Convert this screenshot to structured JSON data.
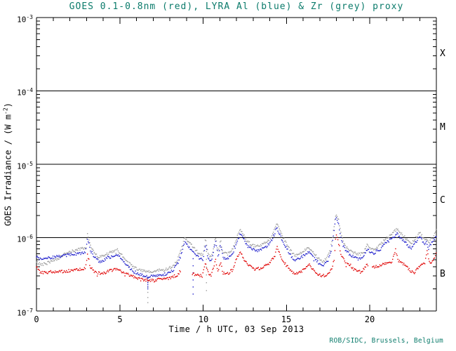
{
  "figure": {
    "title": "GOES 0.1-0.8nm (red), LYRA Al (blue) & Zr (grey) proxy",
    "title_color": "#0b7b6b",
    "credit": "ROB/SIDC, Brussels, Belgium",
    "background": "#ffffff",
    "axis_color": "#000000"
  },
  "axes": {
    "xlabel": "Time / h UTC, 03 Sep 2013",
    "ylabel_pre": "GOES Irradiance / (W m",
    "ylabel_exp": "-2",
    "ylabel_post": ")",
    "x_ticks": [
      "0",
      "5",
      "10",
      "15",
      "20"
    ],
    "y_ticks": [
      {
        "base": "10",
        "exp": "-3"
      },
      {
        "base": "10",
        "exp": "-4"
      },
      {
        "base": "10",
        "exp": "-5"
      },
      {
        "base": "10",
        "exp": "-6"
      },
      {
        "base": "10",
        "exp": "-7"
      }
    ]
  },
  "right_labels": [
    "X",
    "M",
    "C",
    "B"
  ],
  "chart_data": {
    "type": "scatter",
    "title": "GOES 0.1-0.8nm (red), LYRA Al (blue) & Zr (grey) proxy",
    "xlabel": "Time / h UTC, 03 Sep 2013",
    "ylabel": "GOES Irradiance / (W m^-2)",
    "xlim": [
      0,
      24
    ],
    "ylim": [
      1e-07,
      0.001
    ],
    "yscale": "log",
    "x_tick_values": [
      0,
      5,
      10,
      15,
      20
    ],
    "x_minor_step_hours": 1,
    "class_lines": [
      0.0001,
      1e-05,
      1e-06
    ],
    "flare_class_labels": [
      "X",
      "M",
      "C",
      "B"
    ],
    "grid": false,
    "legend": "in title",
    "series": [
      {
        "name": "LYRA Zr proxy",
        "color": "#9c9c9c",
        "unit": 1e-07,
        "keypoints": [
          [
            0,
            4.6
          ],
          [
            0.3,
            4.3
          ],
          [
            0.7,
            4.6
          ],
          [
            1.2,
            5.1
          ],
          [
            1.7,
            5.9
          ],
          [
            2.2,
            6.6
          ],
          [
            2.6,
            7.0
          ],
          [
            2.95,
            7.2
          ],
          [
            3.07,
            11.3
          ],
          [
            3.25,
            7.6
          ],
          [
            3.5,
            6.2
          ],
          [
            3.75,
            5.4
          ],
          [
            4.0,
            5.6
          ],
          [
            4.3,
            6.1
          ],
          [
            4.6,
            6.4
          ],
          [
            4.85,
            6.8
          ],
          [
            5.05,
            6.1
          ],
          [
            5.25,
            5.3
          ],
          [
            5.5,
            4.6
          ],
          [
            5.8,
            4.0
          ],
          [
            6.1,
            3.7
          ],
          [
            6.4,
            3.5
          ],
          [
            6.7,
            3.4
          ],
          [
            7.0,
            3.4
          ],
          [
            7.3,
            3.6
          ],
          [
            7.6,
            3.6
          ],
          [
            7.9,
            3.8
          ],
          [
            8.2,
            4.1
          ],
          [
            8.5,
            5.2
          ],
          [
            8.75,
            7.6
          ],
          [
            8.9,
            10.1
          ],
          [
            9.05,
            9.2
          ],
          [
            9.25,
            8.1
          ],
          [
            9.5,
            7.0
          ],
          [
            9.75,
            6.1
          ],
          [
            10.0,
            5.8
          ],
          [
            10.15,
            9.8
          ],
          [
            10.3,
            5.9
          ],
          [
            10.5,
            5.5
          ],
          [
            10.75,
            10.1
          ],
          [
            10.9,
            6.4
          ],
          [
            11.05,
            9.2
          ],
          [
            11.2,
            6.2
          ],
          [
            11.45,
            5.9
          ],
          [
            11.7,
            6.6
          ],
          [
            11.95,
            8.6
          ],
          [
            12.2,
            12.7
          ],
          [
            12.35,
            12.0
          ],
          [
            12.6,
            9.2
          ],
          [
            12.9,
            8.1
          ],
          [
            13.2,
            7.6
          ],
          [
            13.5,
            7.9
          ],
          [
            13.8,
            8.7
          ],
          [
            14.1,
            10.4
          ],
          [
            14.42,
            15.5
          ],
          [
            14.6,
            12.7
          ],
          [
            14.9,
            9.2
          ],
          [
            15.2,
            6.9
          ],
          [
            15.5,
            5.6
          ],
          [
            15.8,
            6.0
          ],
          [
            16.1,
            6.7
          ],
          [
            16.35,
            7.5
          ],
          [
            16.6,
            6.3
          ],
          [
            16.9,
            5.3
          ],
          [
            17.2,
            4.8
          ],
          [
            17.45,
            5.3
          ],
          [
            17.65,
            6.9
          ],
          [
            17.8,
            11.5
          ],
          [
            17.97,
            21.6
          ],
          [
            18.12,
            17.8
          ],
          [
            18.3,
            10.4
          ],
          [
            18.55,
            7.6
          ],
          [
            18.85,
            6.7
          ],
          [
            19.15,
            6.1
          ],
          [
            19.4,
            5.9
          ],
          [
            19.65,
            6.4
          ],
          [
            19.87,
            8.3
          ],
          [
            20.05,
            7.1
          ],
          [
            20.25,
            6.8
          ],
          [
            20.55,
            7.6
          ],
          [
            20.85,
            9.2
          ],
          [
            21.15,
            10.4
          ],
          [
            21.4,
            11.5
          ],
          [
            21.62,
            13.2
          ],
          [
            21.85,
            11.5
          ],
          [
            22.05,
            10.4
          ],
          [
            22.25,
            9.2
          ],
          [
            22.5,
            8.3
          ],
          [
            22.75,
            9.9
          ],
          [
            22.97,
            11.7
          ],
          [
            23.15,
            10.6
          ],
          [
            23.35,
            9.3
          ],
          [
            23.55,
            8.7
          ],
          [
            23.75,
            9.9
          ],
          [
            23.9,
            11.0
          ],
          [
            24,
            12.7
          ]
        ],
        "gaps": [],
        "artifacts": [
          [
            6.68,
            1.3
          ],
          [
            10.2,
            1.9
          ]
        ]
      },
      {
        "name": "LYRA Al proxy",
        "color": "#2020cc",
        "unit": 1e-07,
        "keypoints": [
          [
            0,
            5.5
          ],
          [
            0.3,
            5.1
          ],
          [
            0.7,
            5.3
          ],
          [
            1.2,
            5.5
          ],
          [
            1.7,
            5.7
          ],
          [
            2.2,
            5.9
          ],
          [
            2.6,
            6.1
          ],
          [
            2.95,
            6.3
          ],
          [
            3.07,
            9.8
          ],
          [
            3.25,
            6.6
          ],
          [
            3.5,
            5.4
          ],
          [
            3.75,
            4.7
          ],
          [
            4.0,
            4.9
          ],
          [
            4.3,
            5.3
          ],
          [
            4.6,
            5.6
          ],
          [
            4.85,
            5.9
          ],
          [
            5.05,
            5.3
          ],
          [
            5.25,
            4.6
          ],
          [
            5.5,
            4.0
          ],
          [
            5.8,
            3.5
          ],
          [
            6.1,
            3.2
          ],
          [
            6.4,
            3.05
          ],
          [
            6.7,
            2.95
          ],
          [
            7.0,
            2.95
          ],
          [
            7.3,
            3.1
          ],
          [
            7.6,
            3.1
          ],
          [
            7.9,
            3.3
          ],
          [
            8.2,
            3.6
          ],
          [
            8.5,
            4.5
          ],
          [
            8.75,
            6.6
          ],
          [
            8.9,
            8.8
          ],
          [
            9.05,
            8.0
          ],
          [
            9.25,
            7.0
          ],
          [
            9.5,
            6.1
          ],
          [
            9.75,
            5.3
          ],
          [
            10.0,
            5.0
          ],
          [
            10.15,
            8.5
          ],
          [
            10.3,
            5.1
          ],
          [
            10.5,
            4.8
          ],
          [
            10.75,
            8.8
          ],
          [
            10.9,
            5.6
          ],
          [
            11.05,
            8.0
          ],
          [
            11.2,
            5.4
          ],
          [
            11.45,
            5.1
          ],
          [
            11.7,
            5.7
          ],
          [
            11.95,
            7.5
          ],
          [
            12.2,
            11.0
          ],
          [
            12.35,
            10.4
          ],
          [
            12.6,
            8.0
          ],
          [
            12.9,
            7.0
          ],
          [
            13.2,
            6.6
          ],
          [
            13.5,
            6.9
          ],
          [
            13.8,
            7.6
          ],
          [
            14.1,
            9.0
          ],
          [
            14.42,
            13.5
          ],
          [
            14.6,
            11.0
          ],
          [
            14.9,
            8.0
          ],
          [
            15.2,
            6.0
          ],
          [
            15.5,
            4.9
          ],
          [
            15.8,
            5.2
          ],
          [
            16.1,
            5.8
          ],
          [
            16.35,
            6.5
          ],
          [
            16.6,
            5.5
          ],
          [
            16.9,
            4.6
          ],
          [
            17.2,
            4.2
          ],
          [
            17.45,
            4.6
          ],
          [
            17.65,
            6.0
          ],
          [
            17.8,
            10.0
          ],
          [
            17.97,
            18.8
          ],
          [
            18.12,
            15.5
          ],
          [
            18.3,
            9.0
          ],
          [
            18.55,
            6.6
          ],
          [
            18.85,
            5.8
          ],
          [
            19.15,
            5.3
          ],
          [
            19.4,
            5.1
          ],
          [
            19.65,
            5.6
          ],
          [
            19.87,
            7.2
          ],
          [
            20.05,
            6.2
          ],
          [
            20.25,
            5.9
          ],
          [
            20.55,
            6.6
          ],
          [
            20.85,
            8.0
          ],
          [
            21.15,
            9.0
          ],
          [
            21.4,
            10.0
          ],
          [
            21.62,
            11.5
          ],
          [
            21.85,
            10.0
          ],
          [
            22.05,
            9.0
          ],
          [
            22.25,
            8.0
          ],
          [
            22.5,
            7.2
          ],
          [
            22.75,
            8.6
          ],
          [
            22.97,
            10.2
          ],
          [
            23.15,
            9.2
          ],
          [
            23.35,
            8.1
          ],
          [
            23.55,
            7.6
          ],
          [
            23.75,
            8.6
          ],
          [
            23.9,
            9.6
          ],
          [
            24,
            11.0
          ]
        ],
        "gaps": [],
        "artifacts": [
          [
            6.68,
            2.0
          ],
          [
            9.4,
            1.7
          ]
        ]
      },
      {
        "name": "GOES 0.1-0.8nm",
        "color": "#e00000",
        "unit": 1e-07,
        "keypoints": [
          [
            0,
            4.1
          ],
          [
            0.15,
            3.5
          ],
          [
            0.4,
            3.3
          ],
          [
            0.8,
            3.4
          ],
          [
            1.3,
            3.4
          ],
          [
            1.8,
            3.5
          ],
          [
            2.3,
            3.6
          ],
          [
            2.7,
            3.7
          ],
          [
            2.95,
            3.8
          ],
          [
            3.07,
            6.0
          ],
          [
            3.2,
            4.0
          ],
          [
            3.45,
            3.5
          ],
          [
            3.7,
            3.3
          ],
          [
            3.95,
            3.2
          ],
          [
            4.2,
            3.4
          ],
          [
            4.5,
            3.6
          ],
          [
            4.8,
            3.7
          ],
          [
            5.1,
            3.5
          ],
          [
            5.4,
            3.2
          ],
          [
            5.7,
            3.0
          ],
          [
            6.0,
            2.8
          ],
          [
            6.35,
            2.65
          ],
          [
            6.7,
            2.6
          ],
          [
            7.0,
            2.6
          ],
          [
            7.3,
            2.7
          ],
          [
            7.6,
            2.75
          ],
          [
            7.9,
            2.8
          ],
          [
            8.2,
            2.95
          ],
          [
            8.45,
            3.1
          ],
          [
            8.6,
            3.4
          ],
          [
            9.4,
            3.2
          ],
          [
            9.7,
            3.1
          ],
          [
            9.95,
            3.0
          ],
          [
            10.15,
            4.5
          ],
          [
            10.3,
            3.2
          ],
          [
            10.5,
            3.1
          ],
          [
            10.75,
            5.0
          ],
          [
            10.9,
            3.4
          ],
          [
            11.05,
            4.6
          ],
          [
            11.2,
            3.3
          ],
          [
            11.45,
            3.2
          ],
          [
            11.75,
            3.6
          ],
          [
            12.0,
            5.0
          ],
          [
            12.2,
            6.3
          ],
          [
            12.35,
            5.7
          ],
          [
            12.55,
            4.6
          ],
          [
            12.85,
            4.0
          ],
          [
            13.15,
            3.7
          ],
          [
            13.45,
            3.8
          ],
          [
            13.75,
            4.1
          ],
          [
            14.05,
            4.7
          ],
          [
            14.3,
            5.6
          ],
          [
            14.42,
            7.5
          ],
          [
            14.6,
            5.9
          ],
          [
            14.85,
            4.6
          ],
          [
            15.15,
            3.8
          ],
          [
            15.45,
            3.3
          ],
          [
            15.75,
            3.3
          ],
          [
            16.05,
            3.7
          ],
          [
            16.35,
            4.3
          ],
          [
            16.6,
            3.7
          ],
          [
            16.9,
            3.2
          ],
          [
            17.2,
            3.0
          ],
          [
            17.5,
            3.2
          ],
          [
            17.72,
            3.8
          ],
          [
            17.87,
            5.0
          ],
          [
            17.98,
            11.3
          ],
          [
            18.1,
            8.8
          ],
          [
            18.3,
            5.8
          ],
          [
            18.55,
            4.6
          ],
          [
            18.85,
            4.0
          ],
          [
            19.15,
            3.6
          ],
          [
            19.45,
            3.4
          ],
          [
            19.7,
            3.9
          ],
          [
            19.87,
            4.3
          ],
          [
            20.2,
            3.9
          ],
          [
            20.5,
            4.1
          ],
          [
            20.8,
            4.4
          ],
          [
            21.1,
            4.4
          ],
          [
            21.35,
            4.7
          ],
          [
            21.55,
            7.0
          ],
          [
            21.7,
            4.9
          ],
          [
            21.95,
            4.6
          ],
          [
            22.15,
            4.2
          ],
          [
            22.4,
            3.6
          ],
          [
            22.65,
            3.3
          ],
          [
            22.9,
            3.9
          ],
          [
            23.1,
            4.4
          ],
          [
            23.3,
            4.3
          ],
          [
            23.45,
            7.0
          ],
          [
            23.6,
            4.4
          ],
          [
            23.8,
            4.7
          ],
          [
            23.95,
            5.8
          ],
          [
            24,
            6.0
          ]
        ],
        "gaps": [
          [
            8.65,
            9.35
          ],
          [
            19.92,
            20.15
          ]
        ],
        "artifacts": []
      }
    ]
  }
}
